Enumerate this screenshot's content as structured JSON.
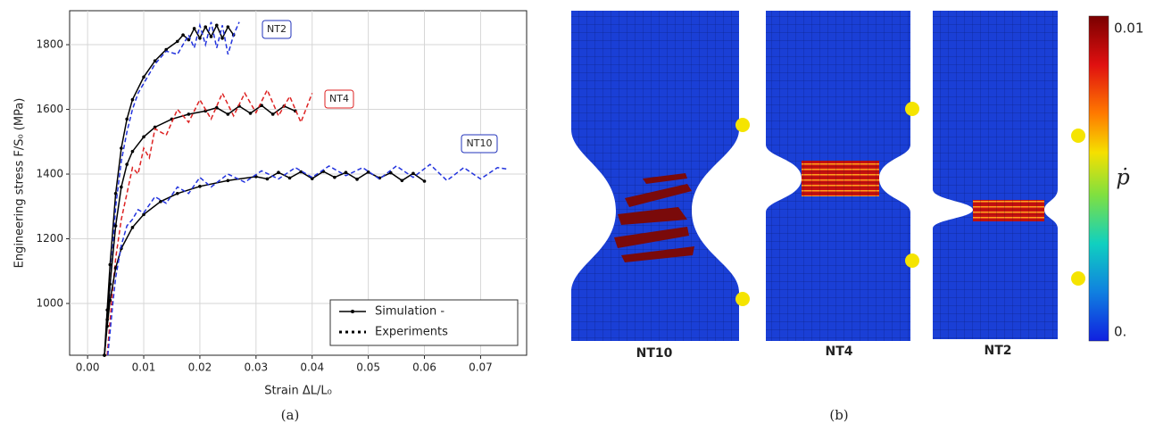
{
  "chart_data": {
    "type": "line",
    "x_label": "Strain ΔL/L₀",
    "y_label": "Engineering stress F/S₀ (MPa)",
    "xlim": [
      -0.0032,
      0.0782
    ],
    "ylim": [
      840,
      1905
    ],
    "xticks": [
      {
        "value": 0,
        "label": "0.00"
      },
      0.01,
      0.02,
      0.03,
      0.04,
      0.05,
      0.06,
      0.07
    ],
    "yticks": [
      1000,
      1200,
      1400,
      1600,
      1800
    ],
    "grid": true,
    "legend_corner": "lower right",
    "legend": [
      {
        "label": "Simulation -",
        "style": "solid"
      },
      {
        "label": "Experiments",
        "style": "dashed"
      }
    ],
    "annotations": [
      {
        "text": "NT2",
        "color": "#2233bb"
      },
      {
        "text": "NT4",
        "color": "#dd2222"
      },
      {
        "text": "NT10",
        "color": "#2233bb"
      }
    ],
    "series": [
      {
        "color": "#000000",
        "style": "solid",
        "x": [
          0.003,
          0.0035,
          0.004,
          0.005,
          0.006,
          0.007,
          0.008,
          0.01,
          0.012,
          0.014,
          0.016,
          0.017,
          0.018,
          0.019,
          0.02,
          0.021,
          0.022,
          0.023,
          0.024,
          0.025,
          0.026
        ],
        "values": [
          840,
          980,
          1120,
          1340,
          1480,
          1570,
          1630,
          1700,
          1750,
          1785,
          1810,
          1830,
          1815,
          1850,
          1820,
          1855,
          1825,
          1860,
          1820,
          1855,
          1830
        ]
      },
      {
        "color": "#2233dd",
        "style": "dashed",
        "x": [
          0.003,
          0.004,
          0.005,
          0.006,
          0.007,
          0.008,
          0.009,
          0.01,
          0.012,
          0.014,
          0.016,
          0.018,
          0.019,
          0.02,
          0.021,
          0.022,
          0.023,
          0.024,
          0.025,
          0.026,
          0.027
        ],
        "values": [
          840,
          1050,
          1300,
          1440,
          1530,
          1600,
          1650,
          1680,
          1740,
          1780,
          1770,
          1830,
          1790,
          1860,
          1800,
          1870,
          1790,
          1860,
          1770,
          1830,
          1870
        ]
      },
      {
        "color": "#000000",
        "style": "solid",
        "x": [
          0.003,
          0.0035,
          0.004,
          0.005,
          0.006,
          0.007,
          0.008,
          0.01,
          0.012,
          0.015,
          0.018,
          0.021,
          0.023,
          0.025,
          0.027,
          0.029,
          0.031,
          0.033,
          0.035,
          0.037
        ],
        "values": [
          840,
          950,
          1060,
          1240,
          1360,
          1430,
          1470,
          1515,
          1545,
          1570,
          1585,
          1595,
          1605,
          1585,
          1610,
          1588,
          1612,
          1585,
          1610,
          1595
        ]
      },
      {
        "color": "#dd2222",
        "style": "dashed",
        "x": [
          0.0035,
          0.0045,
          0.005,
          0.006,
          0.007,
          0.008,
          0.009,
          0.01,
          0.011,
          0.012,
          0.014,
          0.016,
          0.018,
          0.02,
          0.022,
          0.024,
          0.026,
          0.028,
          0.03,
          0.032,
          0.034,
          0.036,
          0.038,
          0.04
        ],
        "values": [
          840,
          1050,
          1140,
          1260,
          1340,
          1420,
          1400,
          1480,
          1450,
          1540,
          1520,
          1600,
          1560,
          1630,
          1570,
          1650,
          1580,
          1650,
          1590,
          1660,
          1580,
          1640,
          1560,
          1650
        ]
      },
      {
        "color": "#000000",
        "style": "solid",
        "x": [
          0.003,
          0.0035,
          0.004,
          0.005,
          0.006,
          0.008,
          0.01,
          0.013,
          0.016,
          0.02,
          0.025,
          0.03,
          0.032,
          0.034,
          0.036,
          0.038,
          0.04,
          0.042,
          0.044,
          0.046,
          0.048,
          0.05,
          0.052,
          0.054,
          0.056,
          0.058,
          0.06
        ],
        "values": [
          840,
          930,
          1010,
          1110,
          1170,
          1235,
          1275,
          1315,
          1340,
          1362,
          1380,
          1392,
          1385,
          1405,
          1388,
          1407,
          1386,
          1408,
          1390,
          1405,
          1384,
          1406,
          1388,
          1404,
          1380,
          1402,
          1378
        ]
      },
      {
        "color": "#2233dd",
        "style": "dashed",
        "x": [
          0.0036,
          0.0045,
          0.005,
          0.006,
          0.007,
          0.008,
          0.009,
          0.01,
          0.012,
          0.014,
          0.016,
          0.018,
          0.02,
          0.022,
          0.025,
          0.028,
          0.031,
          0.034,
          0.037,
          0.04,
          0.043,
          0.046,
          0.049,
          0.052,
          0.055,
          0.058,
          0.061,
          0.064,
          0.067,
          0.07,
          0.073,
          0.075
        ],
        "values": [
          840,
          1000,
          1080,
          1180,
          1240,
          1260,
          1290,
          1280,
          1330,
          1310,
          1360,
          1340,
          1390,
          1360,
          1400,
          1375,
          1410,
          1385,
          1420,
          1390,
          1425,
          1395,
          1420,
          1385,
          1425,
          1390,
          1430,
          1380,
          1420,
          1385,
          1420,
          1415
        ]
      }
    ]
  },
  "figure_b": {
    "panels": [
      "NT10",
      "NT4",
      "NT2"
    ],
    "colorbar": {
      "label": "ṗ",
      "max_label": "0.01",
      "min_label": "0."
    }
  },
  "captions": [
    "(a)",
    "(b)"
  ]
}
